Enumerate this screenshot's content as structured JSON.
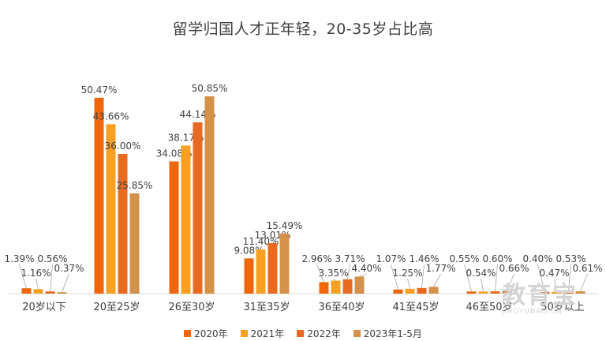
{
  "chart_data": {
    "type": "bar",
    "title": "留学归国人才正年轻，20-35岁占比高",
    "xlabel": "",
    "ylabel": "",
    "ylim": [
      0,
      55
    ],
    "grid": false,
    "legend_position": "bottom",
    "categories": [
      "20岁以下",
      "20至25岁",
      "26至30岁",
      "31至35岁",
      "36至40岁",
      "41至45岁",
      "46至50岁",
      "50岁以上"
    ],
    "series": [
      {
        "name": "2020年",
        "color": "#F0660A",
        "values": [
          1.39,
          50.47,
          34.08,
          9.08,
          2.96,
          1.07,
          0.55,
          0.4
        ],
        "labels": [
          "1.39%",
          "50.47%",
          "34.08%",
          "9.08%",
          "2.96%",
          "1.07%",
          "0.55%",
          "0.40%"
        ]
      },
      {
        "name": "2021年",
        "color": "#F8A023",
        "values": [
          1.16,
          43.66,
          38.17,
          11.4,
          3.35,
          1.25,
          0.54,
          0.47
        ],
        "labels": [
          "1.16%",
          "43.66%",
          "38.17%",
          "11.40%",
          "3.35%",
          "1.25%",
          "0.54%",
          "0.47%"
        ]
      },
      {
        "name": "2022年",
        "color": "#E86A20",
        "values": [
          0.56,
          36.0,
          44.14,
          13.01,
          3.71,
          1.46,
          0.6,
          0.53
        ],
        "labels": [
          "0.56%",
          "36.00%",
          "44.14%",
          "13.01%",
          "3.71%",
          "1.46%",
          "0.60%",
          "0.53%"
        ]
      },
      {
        "name": "2023年1-5月",
        "color": "#D4914A",
        "values": [
          0.37,
          25.85,
          50.85,
          15.49,
          4.4,
          1.77,
          0.66,
          0.61
        ],
        "labels": [
          "0.37%",
          "25.85%",
          "50.85%",
          "15.49%",
          "4.40%",
          "1.77%",
          "0.66%",
          "0.61%"
        ]
      }
    ]
  },
  "watermark": {
    "text_big": "教育宝",
    "text_small": "JIAOYUBAO.CN"
  }
}
